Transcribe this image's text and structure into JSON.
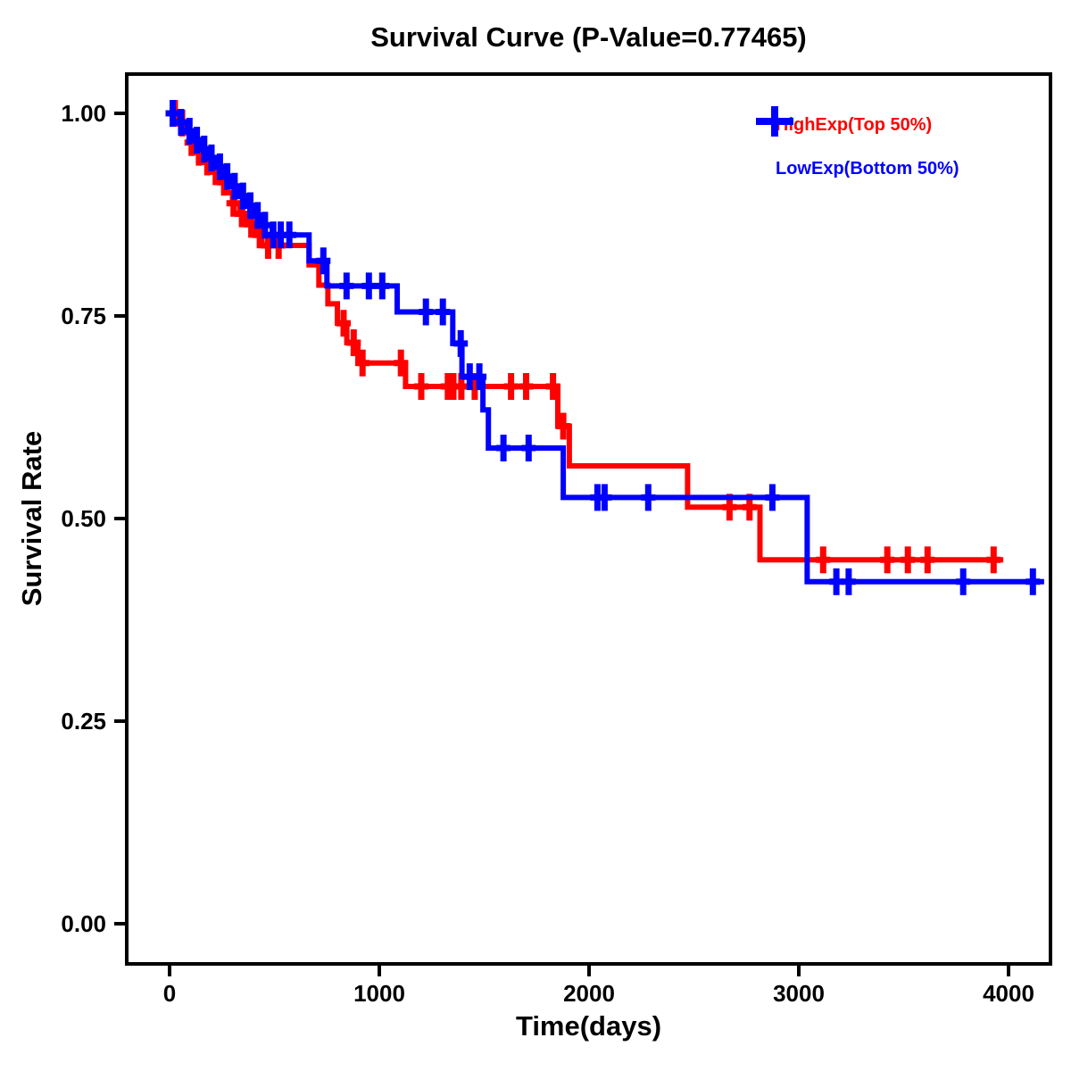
{
  "chart_data": {
    "type": "line",
    "subtype": "kaplan-meier-step",
    "title": "Survival Curve (P-Value=0.77465)",
    "p_value": "0.77465",
    "xlabel": "Time(days)",
    "ylabel": "Survival Rate",
    "xlim": [
      -200,
      4200
    ],
    "ylim": [
      -0.05,
      1.06
    ],
    "grid": false,
    "background": "#FFFFFF",
    "axis_color": "#000000",
    "legend_position": "top-right",
    "x_ticks": [
      {
        "value": 0,
        "label": "0"
      },
      {
        "value": 1000,
        "label": "1000"
      },
      {
        "value": 2000,
        "label": "2000"
      },
      {
        "value": 3000,
        "label": "3000"
      },
      {
        "value": 4000,
        "label": "4000"
      }
    ],
    "y_ticks": [
      {
        "value": 0.0,
        "label": "0.00"
      },
      {
        "value": 0.25,
        "label": "0.25"
      },
      {
        "value": 0.5,
        "label": "0.50"
      },
      {
        "value": 0.75,
        "label": "0.75"
      },
      {
        "value": 1.0,
        "label": "1.00"
      }
    ],
    "series": [
      {
        "id": "highexp",
        "name": "HighExp(Top 50%)",
        "color": "#FF0000",
        "points": [
          [
            0,
            1.0
          ],
          [
            40,
            0.988
          ],
          [
            70,
            0.976
          ],
          [
            100,
            0.964
          ],
          [
            130,
            0.952
          ],
          [
            160,
            0.94
          ],
          [
            195,
            0.928
          ],
          [
            230,
            0.915
          ],
          [
            265,
            0.902
          ],
          [
            300,
            0.889
          ],
          [
            335,
            0.876
          ],
          [
            370,
            0.863
          ],
          [
            405,
            0.85
          ],
          [
            440,
            0.837
          ],
          [
            665,
            0.813
          ],
          [
            712,
            0.788
          ],
          [
            755,
            0.765
          ],
          [
            800,
            0.741
          ],
          [
            845,
            0.717
          ],
          [
            898,
            0.692
          ],
          [
            1125,
            0.663
          ],
          [
            1851,
            0.614
          ],
          [
            1906,
            0.565
          ],
          [
            2470,
            0.514
          ],
          [
            2815,
            0.449
          ]
        ],
        "end_time": 3975,
        "censors": [
          [
            25,
            1.0
          ],
          [
            60,
            0.988
          ],
          [
            105,
            0.964
          ],
          [
            140,
            0.952
          ],
          [
            180,
            0.94
          ],
          [
            220,
            0.928
          ],
          [
            260,
            0.915
          ],
          [
            305,
            0.889
          ],
          [
            345,
            0.876
          ],
          [
            390,
            0.863
          ],
          [
            430,
            0.85
          ],
          [
            470,
            0.837
          ],
          [
            520,
            0.837
          ],
          [
            830,
            0.741
          ],
          [
            878,
            0.717
          ],
          [
            920,
            0.692
          ],
          [
            1103,
            0.692
          ],
          [
            1200,
            0.663
          ],
          [
            1327,
            0.663
          ],
          [
            1353,
            0.663
          ],
          [
            1391,
            0.663
          ],
          [
            1455,
            0.663
          ],
          [
            1628,
            0.663
          ],
          [
            1700,
            0.663
          ],
          [
            1828,
            0.663
          ],
          [
            1877,
            0.614
          ],
          [
            2670,
            0.514
          ],
          [
            2765,
            0.514
          ],
          [
            3116,
            0.449
          ],
          [
            3422,
            0.449
          ],
          [
            3520,
            0.449
          ],
          [
            3614,
            0.449
          ],
          [
            3929,
            0.449
          ]
        ]
      },
      {
        "id": "lowexp",
        "name": "LowExp(Bottom 50%)",
        "color": "#0000FF",
        "points": [
          [
            0,
            1.0
          ],
          [
            50,
            0.989
          ],
          [
            85,
            0.978
          ],
          [
            120,
            0.967
          ],
          [
            155,
            0.956
          ],
          [
            190,
            0.945
          ],
          [
            225,
            0.934
          ],
          [
            260,
            0.922
          ],
          [
            295,
            0.91
          ],
          [
            330,
            0.898
          ],
          [
            365,
            0.886
          ],
          [
            400,
            0.874
          ],
          [
            445,
            0.862
          ],
          [
            490,
            0.85
          ],
          [
            665,
            0.818
          ],
          [
            750,
            0.787
          ],
          [
            1085,
            0.755
          ],
          [
            1350,
            0.716
          ],
          [
            1394,
            0.675
          ],
          [
            1494,
            0.634
          ],
          [
            1520,
            0.587
          ],
          [
            1877,
            0.526
          ],
          [
            3040,
            0.422
          ]
        ],
        "end_time": 4170,
        "censors": [
          [
            15,
            1.0
          ],
          [
            55,
            0.989
          ],
          [
            95,
            0.978
          ],
          [
            130,
            0.967
          ],
          [
            165,
            0.956
          ],
          [
            200,
            0.945
          ],
          [
            240,
            0.934
          ],
          [
            275,
            0.922
          ],
          [
            310,
            0.91
          ],
          [
            350,
            0.898
          ],
          [
            385,
            0.886
          ],
          [
            420,
            0.874
          ],
          [
            455,
            0.862
          ],
          [
            495,
            0.85
          ],
          [
            530,
            0.85
          ],
          [
            571,
            0.85
          ],
          [
            733,
            0.818
          ],
          [
            844,
            0.787
          ],
          [
            950,
            0.787
          ],
          [
            1014,
            0.787
          ],
          [
            1222,
            0.755
          ],
          [
            1303,
            0.755
          ],
          [
            1388,
            0.716
          ],
          [
            1431,
            0.675
          ],
          [
            1477,
            0.675
          ],
          [
            1592,
            0.587
          ],
          [
            1712,
            0.587
          ],
          [
            2040,
            0.526
          ],
          [
            2074,
            0.526
          ],
          [
            2282,
            0.526
          ],
          [
            2874,
            0.526
          ],
          [
            3179,
            0.422
          ],
          [
            3238,
            0.422
          ],
          [
            3784,
            0.422
          ],
          [
            4116,
            0.422
          ]
        ]
      }
    ]
  },
  "legend": {
    "marker": "plus"
  }
}
